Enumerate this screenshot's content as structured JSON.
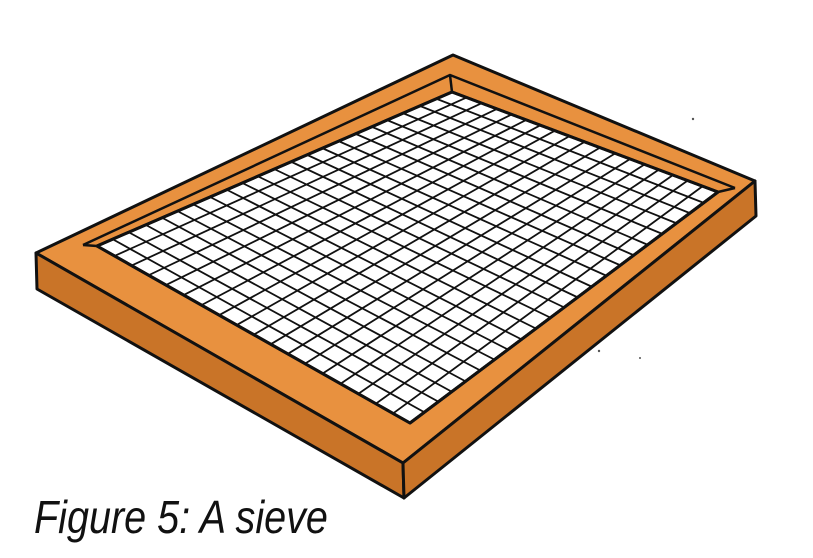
{
  "figure": {
    "caption": "Figure 5:  A sieve",
    "icon": "sieve-icon",
    "colors": {
      "frame": "#E8913F",
      "frame_shadow": "#C97428",
      "ink": "#111111",
      "background": "#FFFFFF"
    }
  }
}
